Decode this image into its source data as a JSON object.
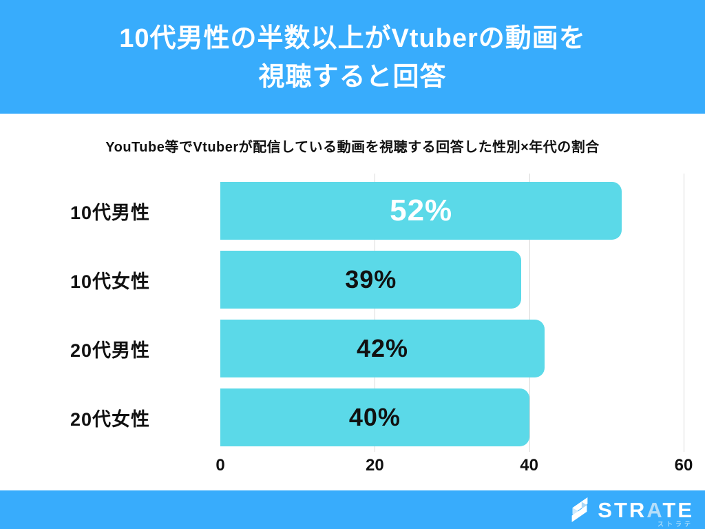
{
  "header": {
    "title_line1": "10代男性の半数以上がVtuberの動画を",
    "title_line2": "視聴すると回答",
    "background_color": "#38acfc",
    "text_color": "#ffffff"
  },
  "subtitle": "YouTube等でVtuberが配信している動画を視聴する回答した性別×年代の割合",
  "chart_data": {
    "type": "bar",
    "orientation": "horizontal",
    "title": "YouTube等でVtuberが配信している動画を視聴する回答した性別×年代の割合",
    "categories": [
      "10代男性",
      "10代女性",
      "20代男性",
      "20代女性"
    ],
    "values": [
      52,
      39,
      42,
      40
    ],
    "value_labels": [
      "52%",
      "39%",
      "42%",
      "40%"
    ],
    "xlabel": "",
    "ylabel": "",
    "xlim": [
      0,
      60
    ],
    "x_ticks": [
      0,
      20,
      40,
      60
    ],
    "grid": "vertical",
    "legend": "none",
    "bar_color": "#5bd9e8",
    "gridline_color": "#d9d9d9",
    "emphasized_index": 0,
    "emphasized_value_color": "#ffffff",
    "value_color": "#111111"
  },
  "footer": {
    "background_color": "#38acfc",
    "logo_text": "STRATE",
    "logo_subtext": "ストラテ",
    "logo_text_color": "#ffffff",
    "logo_subtext_color": "#aadcf9"
  }
}
